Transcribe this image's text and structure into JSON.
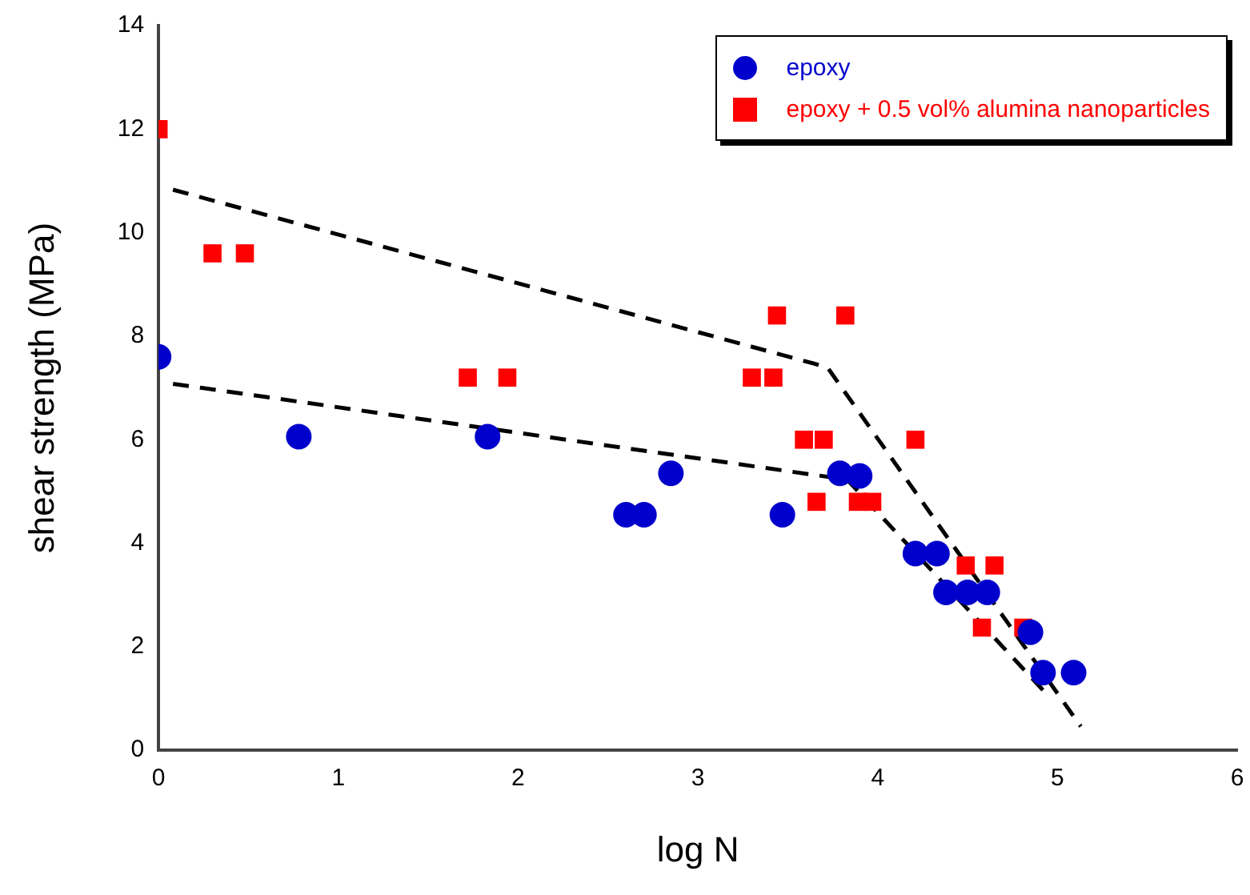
{
  "chart_data": {
    "type": "scatter",
    "xlabel": "log N",
    "ylabel": "shear strength (MPa)",
    "xlim": [
      0,
      6
    ],
    "xticks": [
      0,
      1,
      2,
      3,
      4,
      5,
      6
    ],
    "ylim": [
      0,
      14
    ],
    "yticks": [
      0,
      2,
      4,
      6,
      8,
      10,
      12,
      14
    ],
    "grid": false,
    "legend": "top right",
    "series": [
      {
        "name": "epoxy",
        "color": "#0000cc",
        "marker": "circle",
        "x": [
          0,
          0.78,
          1.83,
          2.6,
          2.7,
          2.85,
          3.47,
          3.79,
          3.9,
          4.21,
          4.33,
          4.38,
          4.5,
          4.61,
          4.85,
          4.92,
          5.09
        ],
        "values": [
          7.6,
          6.06,
          6.06,
          4.55,
          4.55,
          5.35,
          4.55,
          5.35,
          5.3,
          3.8,
          3.8,
          3.05,
          3.05,
          3.05,
          2.28,
          1.5,
          1.5
        ]
      },
      {
        "name": "epoxy + 0.5 vol% alumina nanoparticles",
        "color": "#ff0000",
        "marker": "square",
        "x": [
          0,
          0.3,
          0.48,
          1.72,
          1.94,
          3.3,
          3.42,
          3.44,
          3.82,
          3.59,
          3.7,
          3.66,
          3.89,
          3.97,
          4.21,
          4.49,
          4.58,
          4.65,
          4.81
        ],
        "values": [
          12,
          9.6,
          9.6,
          7.2,
          7.2,
          7.2,
          7.2,
          8.4,
          8.4,
          6,
          6,
          4.8,
          4.8,
          4.8,
          6,
          3.57,
          2.37,
          3.57,
          2.37
        ]
      },
      {
        "type": "line",
        "color": "#000000",
        "marker": "none",
        "line_style": "dashed",
        "x": [
          0.08,
          3.72,
          5.13
        ],
        "values": [
          10.83,
          7.4,
          0.46
        ]
      },
      {
        "type": "line",
        "color": "#000000",
        "marker": "none",
        "line_style": "dashed",
        "x": [
          0.08,
          3.83,
          4.95
        ],
        "values": [
          7.08,
          5.23,
          1.05
        ]
      }
    ]
  }
}
